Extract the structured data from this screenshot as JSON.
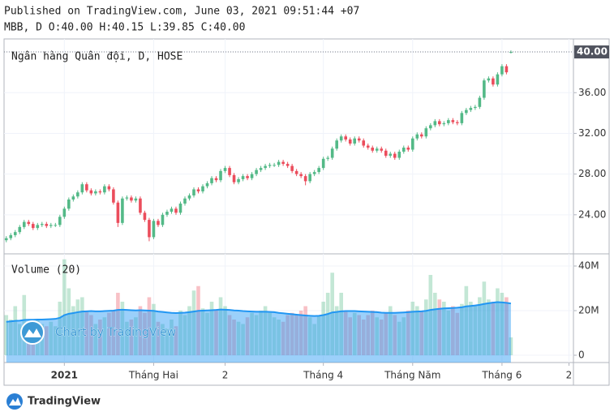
{
  "header": {
    "published": "Published on TradingView.com, June 03, 2021 09:51:44 +07",
    "legend": "MBB, D O:40.00 H:40.15 L:39.85 C:40.00"
  },
  "chart_data": [
    {
      "type": "candlestick",
      "title": "Ngân hàng Quân đội, D, HOSE",
      "open": [
        21.5,
        21.7,
        22.0,
        22.3,
        22.8,
        23.3,
        23.1,
        22.7,
        23.0,
        23.1,
        22.9,
        23.0,
        23.0,
        23.8,
        24.6,
        25.5,
        25.8,
        26.2,
        27.0,
        26.4,
        26.1,
        26.3,
        26.2,
        26.8,
        26.5,
        25.2,
        23.2,
        25.6,
        25.7,
        25.4,
        25.6,
        24.2,
        23.5,
        21.8,
        23.4,
        23.0,
        24.0,
        24.3,
        24.6,
        24.2,
        25.1,
        25.6,
        25.9,
        26.5,
        26.3,
        26.8,
        27.1,
        27.6,
        27.4,
        28.3,
        28.6,
        27.9,
        27.2,
        27.5,
        27.8,
        27.6,
        28.0,
        28.4,
        28.6,
        28.8,
        28.9,
        28.9,
        29.2,
        29.0,
        28.8,
        28.3,
        28.0,
        27.8,
        27.3,
        28.0,
        28.2,
        28.6,
        29.5,
        29.6,
        30.5,
        31.3,
        31.7,
        31.4,
        31.0,
        31.5,
        31.3,
        30.8,
        30.6,
        30.3,
        30.5,
        30.3,
        29.8,
        30.0,
        29.6,
        30.2,
        30.6,
        30.4,
        31.5,
        31.9,
        31.7,
        32.5,
        32.8,
        33.2,
        32.9,
        33.0,
        33.3,
        33.1,
        33.0,
        34.0,
        34.3,
        34.5,
        34.6,
        35.5,
        37.2,
        37.4,
        36.8,
        37.8,
        38.6,
        40.0
      ],
      "high": [
        21.9,
        22.2,
        22.5,
        23.0,
        23.5,
        23.5,
        23.3,
        23.2,
        23.3,
        23.3,
        23.2,
        23.2,
        24.0,
        24.8,
        25.7,
        26.0,
        26.4,
        27.2,
        27.2,
        26.6,
        26.5,
        26.5,
        27.0,
        27.0,
        26.7,
        25.4,
        25.8,
        25.9,
        25.9,
        25.8,
        25.8,
        24.4,
        23.7,
        23.6,
        23.6,
        24.2,
        24.5,
        24.8,
        24.8,
        25.3,
        25.8,
        26.1,
        26.7,
        26.7,
        27.0,
        27.3,
        27.8,
        27.8,
        28.5,
        28.8,
        28.8,
        28.1,
        27.7,
        28.0,
        28.0,
        28.2,
        28.6,
        28.8,
        29.0,
        29.1,
        29.1,
        29.4,
        29.4,
        29.2,
        29.0,
        28.5,
        28.2,
        28.0,
        28.2,
        28.4,
        28.8,
        29.7,
        29.8,
        30.7,
        31.5,
        31.9,
        31.9,
        31.6,
        31.7,
        31.7,
        31.5,
        31.0,
        30.8,
        30.7,
        30.7,
        30.5,
        30.2,
        30.2,
        30.4,
        30.8,
        30.8,
        31.7,
        32.1,
        32.1,
        32.7,
        33.0,
        33.4,
        33.4,
        33.2,
        33.5,
        33.5,
        33.3,
        34.2,
        34.5,
        34.7,
        34.8,
        35.7,
        37.4,
        37.6,
        37.6,
        38.0,
        38.8,
        38.8,
        40.15
      ],
      "low": [
        21.3,
        21.5,
        21.8,
        22.1,
        22.6,
        22.9,
        22.5,
        22.5,
        22.8,
        22.7,
        22.7,
        22.8,
        22.8,
        23.6,
        24.4,
        25.3,
        25.6,
        26.0,
        26.2,
        25.9,
        25.9,
        26.0,
        26.0,
        26.3,
        25.0,
        22.8,
        23.0,
        25.4,
        25.2,
        25.2,
        24.0,
        23.3,
        21.4,
        21.6,
        22.8,
        22.8,
        23.8,
        24.1,
        24.0,
        24.0,
        24.9,
        25.4,
        25.7,
        26.1,
        26.1,
        26.6,
        26.9,
        27.2,
        27.2,
        28.1,
        27.7,
        27.0,
        27.0,
        27.3,
        27.4,
        27.4,
        27.8,
        28.2,
        28.4,
        28.6,
        28.7,
        28.7,
        28.8,
        28.6,
        28.1,
        27.8,
        27.6,
        26.9,
        27.1,
        27.8,
        28.0,
        28.4,
        29.3,
        29.4,
        30.3,
        31.1,
        31.2,
        30.8,
        30.8,
        31.1,
        30.6,
        30.4,
        30.1,
        30.1,
        30.1,
        29.6,
        29.6,
        29.4,
        29.4,
        30.0,
        30.2,
        30.2,
        31.3,
        31.5,
        31.5,
        32.3,
        32.6,
        32.7,
        32.7,
        32.8,
        32.9,
        32.8,
        32.8,
        33.8,
        34.1,
        34.3,
        34.4,
        35.3,
        37.0,
        36.6,
        36.6,
        37.6,
        37.8,
        39.85
      ],
      "close": [
        21.7,
        22.0,
        22.3,
        22.8,
        23.3,
        23.1,
        22.7,
        23.0,
        23.1,
        22.9,
        23.0,
        23.0,
        23.8,
        24.6,
        25.5,
        25.8,
        26.2,
        27.0,
        26.4,
        26.1,
        26.3,
        26.2,
        26.8,
        26.5,
        25.2,
        23.2,
        25.6,
        25.7,
        25.4,
        25.6,
        24.2,
        23.5,
        21.8,
        23.4,
        23.0,
        24.0,
        24.3,
        24.6,
        24.2,
        25.1,
        25.6,
        25.9,
        26.5,
        26.3,
        26.8,
        27.1,
        27.6,
        27.4,
        28.3,
        28.6,
        27.9,
        27.2,
        27.5,
        27.8,
        27.6,
        28.0,
        28.4,
        28.6,
        28.8,
        28.9,
        28.9,
        29.2,
        29.0,
        28.8,
        28.3,
        28.0,
        27.8,
        27.3,
        28.0,
        28.2,
        28.6,
        29.5,
        29.6,
        30.5,
        31.3,
        31.7,
        31.4,
        31.0,
        31.5,
        31.3,
        30.8,
        30.6,
        30.3,
        30.5,
        30.3,
        29.8,
        30.0,
        29.6,
        30.2,
        30.6,
        30.4,
        31.5,
        31.9,
        31.7,
        32.5,
        32.8,
        33.2,
        32.9,
        33.0,
        33.3,
        33.1,
        33.0,
        34.0,
        34.3,
        34.5,
        34.6,
        35.5,
        37.2,
        37.4,
        36.8,
        37.8,
        38.6,
        38.0,
        40.0
      ],
      "up_color": "#53b987",
      "down_color": "#eb4d5c",
      "last_label": "40.00",
      "ylim": [
        20.24,
        41.28
      ],
      "yticks": [
        {
          "value": 24,
          "label": "24.00"
        },
        {
          "value": 28,
          "label": "28.00"
        },
        {
          "value": 32,
          "label": "32.00"
        },
        {
          "value": 36,
          "label": "36.00"
        },
        {
          "value": 40,
          "label": "40.00"
        }
      ],
      "xlim": [
        -0.5,
        127
      ],
      "xticks": [
        {
          "value": 13,
          "label": "2021"
        },
        {
          "value": 33,
          "label": "Tháng Hai"
        },
        {
          "value": 49,
          "label": "2"
        },
        {
          "value": 71,
          "label": "Tháng 4"
        },
        {
          "value": 91,
          "label": "Tháng Năm"
        },
        {
          "value": 111,
          "label": "Tháng 6"
        },
        {
          "value": 126,
          "label": "2"
        }
      ],
      "grid": true
    },
    {
      "type": "volume",
      "title": "Volume (20)",
      "values": [
        18,
        16,
        22,
        14,
        27,
        15,
        12,
        16,
        14,
        13,
        15,
        13,
        24,
        43,
        30,
        22,
        25,
        26,
        20,
        18,
        14,
        16,
        17,
        19,
        20,
        28,
        24,
        15,
        16,
        17,
        22,
        19,
        26,
        23,
        15,
        14,
        12,
        16,
        13,
        20,
        18,
        22,
        29,
        31,
        21,
        19,
        24,
        20,
        26,
        22,
        18,
        16,
        15,
        14,
        17,
        19,
        18,
        20,
        22,
        19,
        17,
        16,
        15,
        18,
        19,
        18,
        20,
        22,
        17,
        14,
        18,
        24,
        28,
        37,
        22,
        28,
        20,
        17,
        19,
        18,
        16,
        18,
        20,
        17,
        16,
        19,
        22,
        18,
        15,
        17,
        20,
        24,
        22,
        20,
        25,
        36,
        28,
        25,
        24,
        20,
        22,
        19,
        23,
        31,
        24,
        22,
        26,
        33,
        25,
        24,
        30,
        28,
        26,
        8
      ],
      "ma": [
        15,
        15.2,
        15.4,
        15.5,
        15.8,
        15.9,
        15.9,
        16,
        16,
        16.1,
        16.2,
        16.3,
        16.8,
        18,
        18.6,
        18.9,
        19.3,
        19.6,
        19.7,
        19.8,
        19.7,
        19.7,
        19.8,
        19.9,
        20,
        20.3,
        20.4,
        20.3,
        20.2,
        20.1,
        20.2,
        20.1,
        20,
        19.9,
        19.6,
        19.4,
        19.2,
        19,
        18.9,
        19,
        19.1,
        19.3,
        19.6,
        19.9,
        20,
        20.1,
        20.2,
        20.3,
        20.5,
        20.4,
        20.3,
        20.1,
        20,
        19.8,
        19.7,
        19.6,
        19.5,
        19.5,
        19.5,
        19.4,
        19.3,
        19,
        18.8,
        18.6,
        18.4,
        18.2,
        18,
        17.8,
        17.7,
        17.6,
        17.7,
        18,
        18.5,
        19.2,
        19.4,
        19.7,
        19.8,
        19.8,
        19.8,
        19.7,
        19.6,
        19.5,
        19.4,
        19.3,
        19.1,
        19,
        19,
        19,
        19.1,
        19.2,
        19.3,
        19.5,
        19.6,
        19.7,
        19.9,
        20.3,
        20.6,
        20.8,
        21,
        21.1,
        21.2,
        21.3,
        21.5,
        21.9,
        22.1,
        22.3,
        22.6,
        23,
        23.3,
        23.6,
        23.8,
        23.7,
        23.5,
        23.2
      ],
      "ma_color": "#2196f3",
      "ylim": [
        -3.27,
        45.45
      ],
      "yticks": [
        0,
        {
          "value": 20,
          "label": "20M"
        },
        {
          "value": 40,
          "label": "40M"
        }
      ]
    }
  ],
  "watermark": "Chart by TradingView",
  "footer": "TradingView"
}
